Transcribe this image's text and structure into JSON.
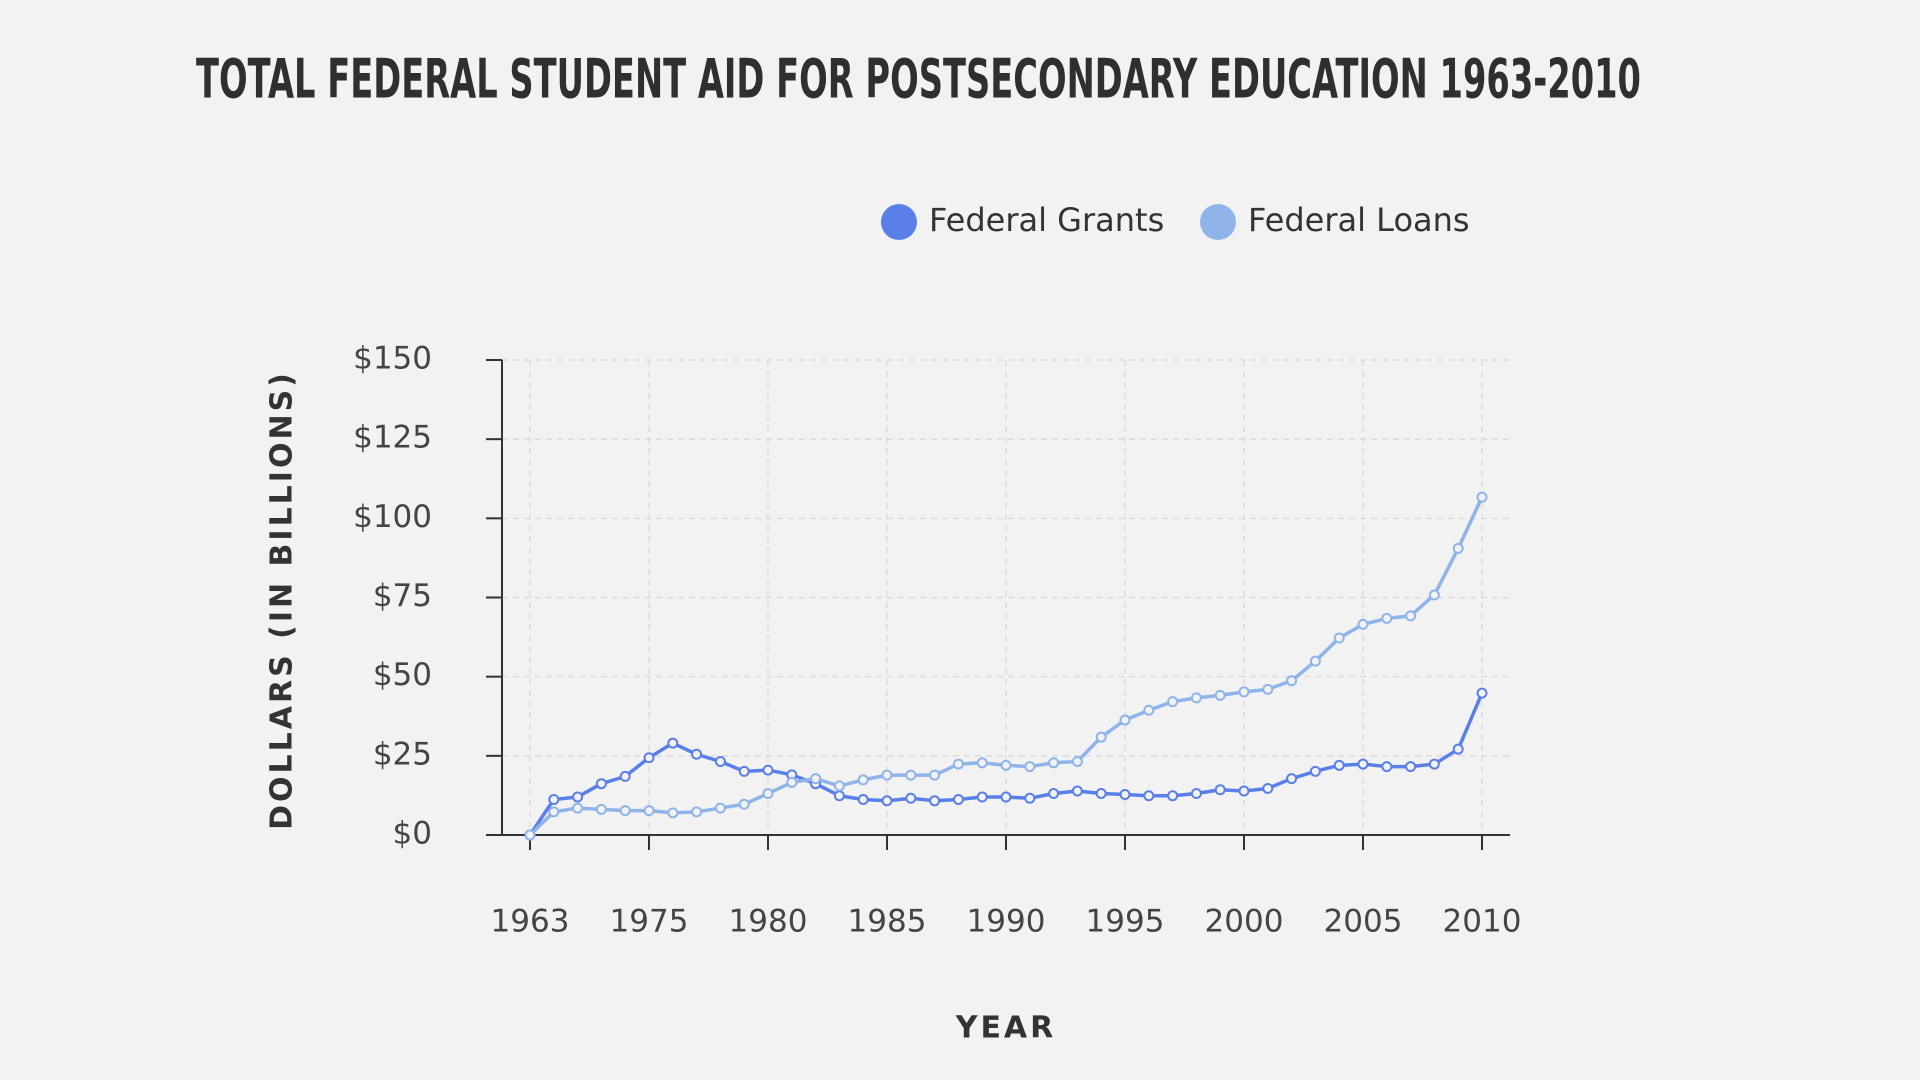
{
  "chart_data": {
    "type": "line",
    "title": "TOTAL FEDERAL STUDENT AID FOR POSTSECONDARY EDUCATION 1963-2010",
    "x_label": "YEAR",
    "y_label": "DOLLARS (IN BILLIONS)",
    "categories": [
      "1963",
      null,
      null,
      null,
      null,
      "1975",
      null,
      null,
      null,
      null,
      "1980",
      null,
      null,
      null,
      null,
      "1985",
      null,
      null,
      null,
      null,
      "1990",
      null,
      null,
      null,
      null,
      "1995",
      null,
      null,
      null,
      null,
      "2000",
      null,
      null,
      null,
      null,
      "2005",
      null,
      null,
      null,
      null,
      "2010"
    ],
    "series": [
      {
        "name": "Federal Grants",
        "color": "#5b7fe8",
        "values": [
          0,
          11.2,
          12,
          16.2,
          18.5,
          24.4,
          29,
          25.5,
          23.2,
          20.1,
          20.5,
          19,
          16.2,
          12.4,
          11.2,
          10.8,
          11.6,
          10.8,
          11.2,
          12,
          12,
          11.6,
          13.1,
          13.9,
          13.1,
          12.8,
          12.4,
          12.4,
          13.1,
          14.3,
          13.9,
          14.7,
          17.8,
          20.1,
          22,
          22.4,
          21.6,
          21.6,
          22.4,
          27.1,
          44.8
        ]
      },
      {
        "name": "Federal Loans",
        "color": "#8fb4ea",
        "values": [
          0,
          7.3,
          8.5,
          8.1,
          7.7,
          7.7,
          7,
          7.3,
          8.5,
          9.7,
          13.1,
          16.6,
          17.8,
          15.5,
          17.4,
          18.9,
          18.9,
          18.9,
          22.4,
          22.8,
          22,
          21.6,
          22.8,
          23.2,
          30.9,
          36.3,
          39.4,
          42.1,
          43.3,
          44.1,
          45.2,
          46,
          48.7,
          54.9,
          62.2,
          66.5,
          68.4,
          69.2,
          75.8,
          90.5,
          106.7
        ]
      }
    ],
    "ylim": [
      0,
      150
    ],
    "yticks": [
      {
        "value": 0,
        "label": "$0"
      },
      {
        "value": 25,
        "label": "$25"
      },
      {
        "value": 50,
        "label": "$50"
      },
      {
        "value": 75,
        "label": "$75"
      },
      {
        "value": 100,
        "label": "$100"
      },
      {
        "value": 125,
        "label": "$125"
      },
      {
        "value": 150,
        "label": "$150"
      }
    ],
    "grid": true
  }
}
